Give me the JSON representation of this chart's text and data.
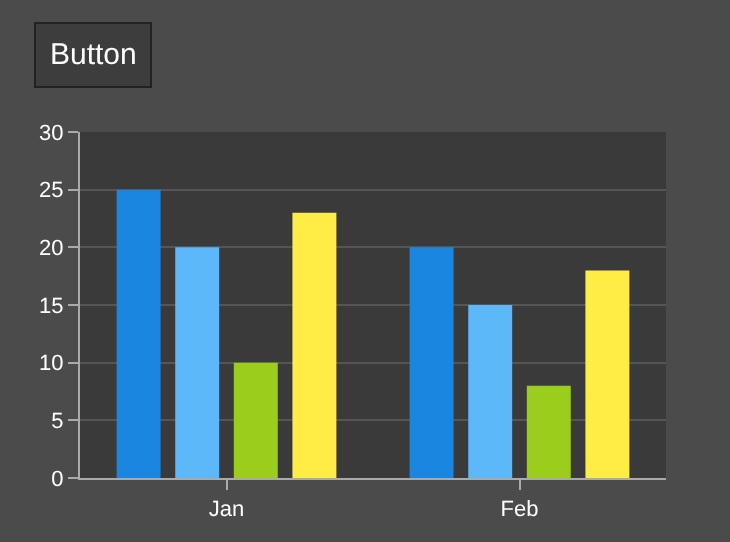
{
  "chart_data": {
    "type": "bar",
    "categories": [
      "Jan",
      "Feb"
    ],
    "series": [
      {
        "color": "#1a86e0",
        "values": [
          25,
          20
        ]
      },
      {
        "color": "#5cb8f8",
        "values": [
          20,
          15
        ]
      },
      {
        "color": "#9acd1c",
        "values": [
          10,
          8
        ]
      },
      {
        "color": "#ffec45",
        "values": [
          23,
          18
        ]
      }
    ],
    "ylim": [
      0,
      30
    ],
    "yticks": [
      0,
      5,
      10,
      15,
      20,
      25,
      30
    ],
    "grid": "y",
    "annotations": [
      "Button"
    ]
  }
}
